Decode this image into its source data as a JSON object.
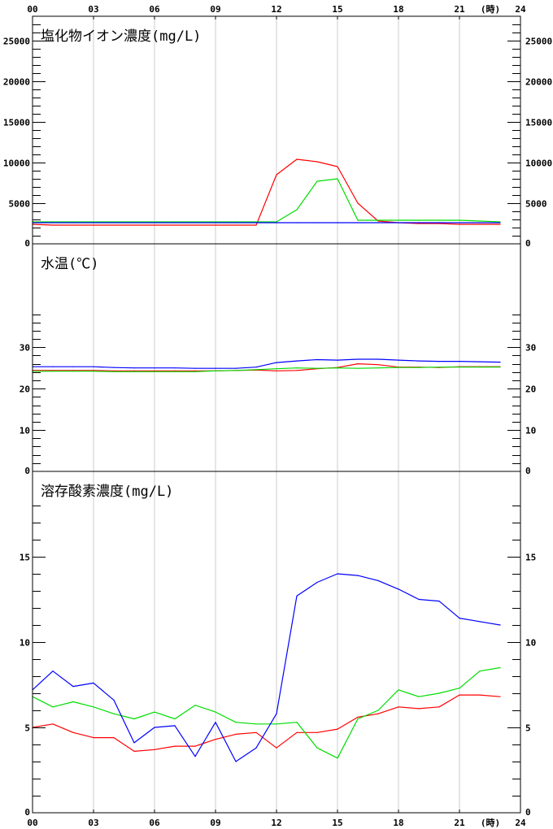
{
  "chart_data": {
    "x_axis": {
      "min": 0,
      "max": 24,
      "tick_values": [
        0,
        3,
        6,
        9,
        12,
        15,
        18,
        21,
        24
      ],
      "tick_labels": [
        "00",
        "03",
        "06",
        "09",
        "12",
        "15",
        "18",
        "21",
        "24"
      ],
      "unit_label": "(時)",
      "vertical_grid": true
    },
    "colors": {
      "series_1": "#ff0000",
      "series_2": "#00dd00",
      "series_3": "#0000ff"
    },
    "panels": [
      {
        "type": "line",
        "title": "塩化物イオン濃度(mg/L)",
        "ylim": [
          0,
          28000
        ],
        "y_tick_values": [
          0,
          5000,
          10000,
          15000,
          20000,
          25000
        ],
        "y_tick_labels_left": [
          "0",
          "5000",
          "10000",
          "15000",
          "20000",
          "25000"
        ],
        "y_tick_labels_right": [
          "0",
          "5000",
          "10000",
          "15000",
          "20000",
          "25000"
        ],
        "minor_step": 1000,
        "series": [
          {
            "color": "#ff0000",
            "x": [
              0,
              1,
              2,
              3,
              4,
              5,
              6,
              7,
              8,
              9,
              10,
              11,
              12,
              13,
              14,
              15,
              16,
              17,
              18,
              19,
              20,
              21,
              22,
              23
            ],
            "values": [
              2400,
              2300,
              2300,
              2300,
              2300,
              2300,
              2300,
              2300,
              2300,
              2300,
              2300,
              2300,
              8500,
              10400,
              10100,
              9500,
              5000,
              2800,
              2600,
              2500,
              2500,
              2400,
              2400,
              2400
            ]
          },
          {
            "color": "#00dd00",
            "x": [
              0,
              1,
              2,
              3,
              4,
              5,
              6,
              7,
              8,
              9,
              10,
              11,
              12,
              13,
              14,
              15,
              16,
              17,
              18,
              19,
              20,
              21,
              22,
              23
            ],
            "values": [
              2700,
              2700,
              2700,
              2700,
              2700,
              2700,
              2700,
              2700,
              2700,
              2700,
              2700,
              2700,
              2700,
              4200,
              7700,
              8000,
              2900,
              2900,
              2900,
              2900,
              2900,
              2900,
              2800,
              2700
            ]
          },
          {
            "color": "#0000ff",
            "x": [
              0,
              1,
              2,
              3,
              4,
              5,
              6,
              7,
              8,
              9,
              10,
              11,
              12,
              13,
              14,
              15,
              16,
              17,
              18,
              19,
              20,
              21,
              22,
              23
            ],
            "values": [
              2600,
              2600,
              2600,
              2600,
              2600,
              2600,
              2600,
              2600,
              2600,
              2600,
              2600,
              2600,
              2600,
              2600,
              2600,
              2600,
              2600,
              2600,
              2600,
              2600,
              2600,
              2600,
              2600,
              2600
            ]
          }
        ]
      },
      {
        "type": "line",
        "title": "水温(℃)",
        "ylim": [
          0,
          55
        ],
        "y_tick_values": [
          0,
          10,
          20,
          30
        ],
        "y_tick_labels_left": [
          "0",
          "10",
          "20",
          "30"
        ],
        "y_tick_labels_right": [
          "0",
          "10",
          "20",
          "30"
        ],
        "minor_step": 2,
        "minor_max": 38,
        "series": [
          {
            "color": "#ff0000",
            "x": [
              0,
              1,
              2,
              3,
              4,
              5,
              6,
              7,
              8,
              9,
              10,
              11,
              12,
              13,
              14,
              15,
              16,
              17,
              18,
              19,
              20,
              21,
              22,
              23
            ],
            "values": [
              24.4,
              24.4,
              24.4,
              24.4,
              24.3,
              24.3,
              24.3,
              24.3,
              24.3,
              24.3,
              24.4,
              24.5,
              24.3,
              24.4,
              24.8,
              25.1,
              26.0,
              25.8,
              25.2,
              25.2,
              25.1,
              25.3,
              25.3,
              25.3
            ]
          },
          {
            "color": "#00dd00",
            "x": [
              0,
              1,
              2,
              3,
              4,
              5,
              6,
              7,
              8,
              9,
              10,
              11,
              12,
              13,
              14,
              15,
              16,
              17,
              18,
              19,
              20,
              21,
              22,
              23
            ],
            "values": [
              24.2,
              24.2,
              24.2,
              24.2,
              24.1,
              24.1,
              24.1,
              24.1,
              24.1,
              24.3,
              24.4,
              24.6,
              24.8,
              25.0,
              24.9,
              25.0,
              24.9,
              25.0,
              25.1,
              25.1,
              25.2,
              25.2,
              25.2,
              25.2
            ]
          },
          {
            "color": "#0000ff",
            "x": [
              0,
              1,
              2,
              3,
              4,
              5,
              6,
              7,
              8,
              9,
              10,
              11,
              12,
              13,
              14,
              15,
              16,
              17,
              18,
              19,
              20,
              21,
              22,
              23
            ],
            "values": [
              25.3,
              25.3,
              25.3,
              25.3,
              25.1,
              25.0,
              25.0,
              25.0,
              24.9,
              24.9,
              24.9,
              25.2,
              26.3,
              26.7,
              27.0,
              26.9,
              27.1,
              27.1,
              26.9,
              26.7,
              26.6,
              26.6,
              26.5,
              26.4
            ]
          }
        ]
      },
      {
        "type": "line",
        "title": "溶存酸素濃度(mg/L)",
        "ylim": [
          0,
          20
        ],
        "y_tick_values": [
          0,
          5,
          10,
          15
        ],
        "y_tick_labels_left": [
          "0",
          "5",
          "10",
          "15"
        ],
        "y_tick_labels_right": [
          "0",
          "5",
          "10",
          "15"
        ],
        "minor_step": 1,
        "minor_max": 18,
        "series": [
          {
            "color": "#ff0000",
            "x": [
              0,
              1,
              2,
              3,
              4,
              5,
              6,
              7,
              8,
              9,
              10,
              11,
              12,
              13,
              14,
              15,
              16,
              17,
              18,
              19,
              20,
              21,
              22,
              23
            ],
            "values": [
              5.0,
              5.2,
              4.7,
              4.4,
              4.4,
              3.6,
              3.7,
              3.9,
              3.9,
              4.3,
              4.6,
              4.7,
              3.8,
              4.7,
              4.7,
              4.9,
              5.6,
              5.8,
              6.2,
              6.1,
              6.2,
              6.9,
              6.9,
              6.8
            ]
          },
          {
            "color": "#00dd00",
            "x": [
              0,
              1,
              2,
              3,
              4,
              5,
              6,
              7,
              8,
              9,
              10,
              11,
              12,
              13,
              14,
              15,
              16,
              17,
              18,
              19,
              20,
              21,
              22,
              23
            ],
            "values": [
              6.8,
              6.2,
              6.5,
              6.2,
              5.8,
              5.5,
              5.9,
              5.5,
              6.3,
              5.9,
              5.3,
              5.2,
              5.2,
              5.3,
              3.8,
              3.2,
              5.5,
              6.0,
              7.2,
              6.8,
              7.0,
              7.3,
              8.3,
              8.5
            ]
          },
          {
            "color": "#0000ff",
            "x": [
              0,
              1,
              2,
              3,
              4,
              5,
              6,
              7,
              8,
              9,
              10,
              11,
              12,
              13,
              14,
              15,
              16,
              17,
              18,
              19,
              20,
              21,
              22,
              23
            ],
            "values": [
              7.2,
              8.3,
              7.4,
              7.6,
              6.6,
              4.1,
              5.0,
              5.1,
              3.3,
              5.3,
              3.0,
              3.8,
              5.8,
              12.7,
              13.5,
              14.0,
              13.9,
              13.6,
              13.1,
              12.5,
              12.4,
              11.4,
              11.2,
              11.0
            ]
          }
        ]
      }
    ]
  }
}
